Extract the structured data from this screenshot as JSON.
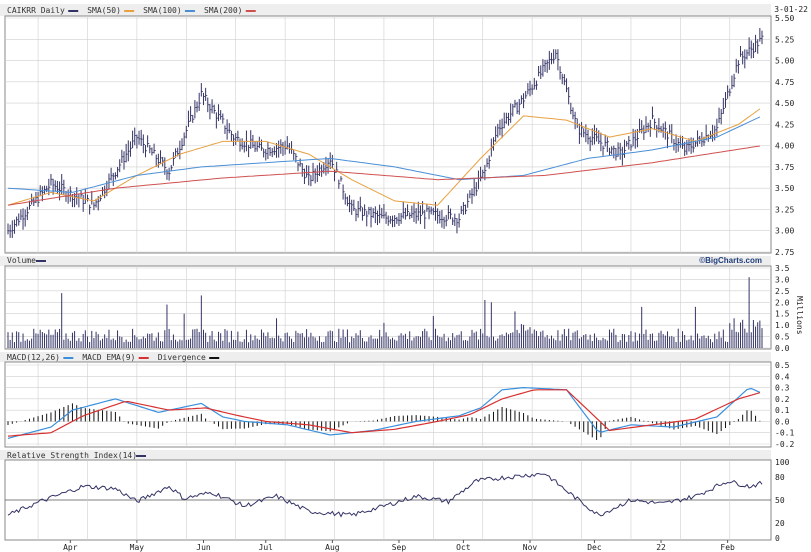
{
  "colors": {
    "price_bar": "#333366",
    "sma50": "#e8a040",
    "sma100": "#4a8fd6",
    "sma200": "#d05050",
    "volume_bar": "#333366",
    "macd": "#3a8fdd",
    "macd_ema": "#d83030",
    "divergence": "#111111",
    "rsi_line": "#333366",
    "grid": "#cfcfcf",
    "panel_border": "#8a8a8a",
    "title_bg": "#eeeeee"
  },
  "price_panel": {
    "legend": [
      {
        "label": "CAIKRR Daily",
        "color": "#333366"
      },
      {
        "label": "SMA(50)",
        "color": "#e8a040"
      },
      {
        "label": "SMA(100)",
        "color": "#4a8fd6"
      },
      {
        "label": "SMA(200)",
        "color": "#d05050"
      }
    ],
    "date_label": "3-01-22",
    "yticks": [
      "5.50",
      "5.25",
      "5.00",
      "4.75",
      "4.50",
      "4.25",
      "4.00",
      "3.75",
      "3.50",
      "3.25",
      "3.00",
      "2.75"
    ]
  },
  "volume_panel": {
    "title": "Volume",
    "credit": "©BigCharts.com",
    "yticks": [
      "3.5",
      "3.0",
      "2.5",
      "2.0",
      "1.5",
      "1.0",
      "0.5",
      "0.0"
    ],
    "unit": "Millions"
  },
  "macd_panel": {
    "legend": [
      {
        "label": "MACD(12,26)",
        "color": "#3a8fdd"
      },
      {
        "label": "MACD EMA(9)",
        "color": "#d83030"
      },
      {
        "label": "Divergence",
        "color": "#111111"
      }
    ],
    "yticks": [
      "0.5",
      "0.4",
      "0.3",
      "0.2",
      "0.1",
      "0.0",
      "-0.1",
      "-0.2"
    ]
  },
  "rsi_panel": {
    "title": "Relative Strength Index(14)",
    "yticks": [
      "100",
      "80",
      "50",
      "20",
      "0"
    ]
  },
  "x_axis": {
    "months": [
      "Apr",
      "May",
      "Jun",
      "Jul",
      "Aug",
      "Sep",
      "Oct",
      "Nov",
      "Dec",
      "22",
      "Feb"
    ]
  },
  "chart_data": [
    {
      "type": "line",
      "name": "price",
      "title": "CAIKRR Daily",
      "x_range": [
        "2021-03-01",
        "2022-03-01"
      ],
      "ylim": [
        2.75,
        5.5
      ],
      "x_anchors": [
        0,
        20,
        40,
        60,
        75,
        90,
        105,
        118,
        130,
        140,
        150,
        160,
        175,
        195,
        210,
        222,
        228,
        240,
        255,
        265,
        285,
        300,
        315,
        330,
        340,
        351
      ],
      "close_anchors": [
        3.0,
        3.55,
        3.3,
        4.1,
        3.7,
        4.6,
        4.1,
        3.95,
        4.0,
        3.6,
        3.85,
        3.25,
        3.15,
        3.2,
        3.15,
        3.7,
        4.2,
        4.55,
        5.1,
        4.2,
        3.9,
        4.3,
        3.95,
        4.2,
        5.0,
        5.25
      ],
      "series": [
        {
          "name": "SMA(50)",
          "x": [
            0,
            20,
            40,
            60,
            80,
            100,
            120,
            140,
            160,
            180,
            200,
            220,
            240,
            260,
            280,
            300,
            320,
            340,
            351
          ],
          "values": [
            3.3,
            3.45,
            3.35,
            3.65,
            3.9,
            4.05,
            4.05,
            3.9,
            3.6,
            3.35,
            3.3,
            3.85,
            4.35,
            4.3,
            4.1,
            4.2,
            4.05,
            4.25,
            4.45
          ]
        },
        {
          "name": "SMA(100)",
          "x": [
            0,
            30,
            60,
            90,
            120,
            150,
            180,
            210,
            240,
            270,
            300,
            330,
            351
          ],
          "values": [
            3.5,
            3.45,
            3.65,
            3.75,
            3.8,
            3.85,
            3.75,
            3.6,
            3.65,
            3.85,
            3.95,
            4.1,
            4.35
          ]
        },
        {
          "name": "SMA(200)",
          "x": [
            0,
            50,
            100,
            150,
            200,
            250,
            300,
            351
          ],
          "values": [
            3.3,
            3.5,
            3.62,
            3.7,
            3.6,
            3.65,
            3.8,
            4.0
          ]
        }
      ]
    },
    {
      "type": "bar",
      "name": "volume",
      "ylabel": "Millions",
      "ylim": [
        0,
        3.5
      ],
      "spikes": [
        {
          "x": 15,
          "value": 0.8
        },
        {
          "x": 25,
          "value": 2.4
        },
        {
          "x": 74,
          "value": 1.9
        },
        {
          "x": 82,
          "value": 1.5
        },
        {
          "x": 90,
          "value": 2.3
        },
        {
          "x": 125,
          "value": 1.3
        },
        {
          "x": 175,
          "value": 1.1
        },
        {
          "x": 198,
          "value": 1.4
        },
        {
          "x": 222,
          "value": 2.1
        },
        {
          "x": 225,
          "value": 2.0
        },
        {
          "x": 236,
          "value": 1.6
        },
        {
          "x": 295,
          "value": 1.8
        },
        {
          "x": 320,
          "value": 1.8
        },
        {
          "x": 338,
          "value": 1.3
        },
        {
          "x": 345,
          "value": 3.1
        },
        {
          "x": 350,
          "value": 1.2
        }
      ]
    },
    {
      "type": "line",
      "name": "macd",
      "ylim": [
        -0.2,
        0.5
      ],
      "series": [
        {
          "name": "MACD(12,26)",
          "x": [
            0,
            20,
            30,
            50,
            70,
            90,
            100,
            110,
            130,
            150,
            170,
            190,
            210,
            220,
            230,
            240,
            260,
            275,
            290,
            310,
            330,
            345,
            351
          ],
          "values": [
            -0.15,
            -0.05,
            0.1,
            0.2,
            0.08,
            0.16,
            0.04,
            0.0,
            -0.03,
            -0.12,
            -0.08,
            0.0,
            0.05,
            0.12,
            0.28,
            0.3,
            0.28,
            -0.1,
            -0.03,
            -0.05,
            0.04,
            0.3,
            0.25
          ]
        },
        {
          "name": "MACD EMA(9)",
          "x": [
            0,
            20,
            35,
            55,
            75,
            92,
            105,
            120,
            140,
            160,
            180,
            200,
            215,
            230,
            245,
            260,
            280,
            300,
            320,
            340,
            351
          ],
          "values": [
            -0.13,
            -0.1,
            0.05,
            0.18,
            0.1,
            0.12,
            0.06,
            0.0,
            -0.03,
            -0.1,
            -0.07,
            0.0,
            0.06,
            0.2,
            0.28,
            0.28,
            -0.08,
            -0.03,
            0.02,
            0.2,
            0.26
          ]
        }
      ]
    },
    {
      "type": "line",
      "name": "rsi",
      "title": "Relative Strength Index(14)",
      "ylim": [
        0,
        100
      ],
      "x": [
        0,
        15,
        35,
        50,
        60,
        75,
        82,
        95,
        110,
        125,
        140,
        160,
        175,
        190,
        205,
        218,
        232,
        250,
        260,
        275,
        290,
        305,
        320,
        335,
        345,
        351
      ],
      "values": [
        30,
        48,
        68,
        65,
        48,
        68,
        52,
        60,
        42,
        55,
        35,
        30,
        42,
        55,
        48,
        75,
        80,
        85,
        62,
        30,
        50,
        45,
        55,
        75,
        68,
        72
      ]
    }
  ]
}
